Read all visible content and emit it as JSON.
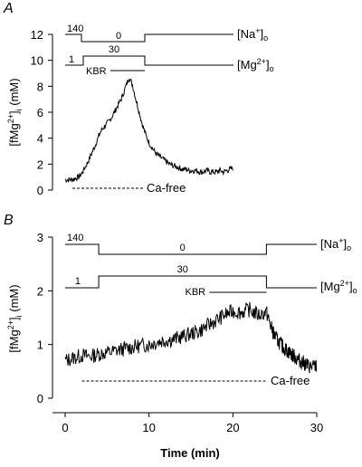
{
  "chart_data": [
    {
      "panel": "A",
      "type": "line",
      "ylabel": "[fMg2+]i (mM)",
      "ylim": [
        0,
        12
      ],
      "yticks": [
        0,
        2,
        4,
        6,
        8,
        10,
        12
      ],
      "ytick_labels": [
        "0",
        "2",
        "4",
        "6",
        "8",
        "10",
        "12"
      ],
      "xlim": [
        0,
        30
      ],
      "series": [
        {
          "x": [
            0,
            0.5,
            1,
            1.5,
            2,
            2.5,
            3,
            3.5,
            4,
            4.5,
            5,
            5.5,
            6,
            6.5,
            7,
            7.5,
            8,
            8.5,
            9,
            9.5,
            10,
            10.5,
            11,
            11.5,
            12,
            12.5,
            13,
            13.5,
            14,
            14.5,
            15,
            15.5,
            16,
            16.5,
            17,
            17.5,
            18,
            18.5,
            19,
            19.5,
            20,
            20.5,
            21,
            21.5,
            22,
            22.5,
            23,
            23.5,
            24,
            24.5,
            25
          ],
          "y": [
            0.8,
            0.8,
            0.8,
            0.9,
            1.0,
            1.3,
            1.8,
            2.3,
            2.9,
            3.5,
            4.2,
            4.7,
            5.0,
            5.3,
            5.7,
            6.2,
            6.7,
            7.2,
            8.0,
            8.7,
            8.1,
            7.0,
            6.0,
            5.0,
            4.2,
            3.6,
            3.2,
            2.8,
            2.6,
            2.4,
            2.2,
            2.0,
            1.9,
            1.8,
            1.7,
            1.6,
            1.6,
            1.5,
            1.5,
            1.5,
            1.4,
            1.4,
            1.5,
            1.4,
            1.4,
            1.4,
            1.5,
            1.4,
            1.5,
            1.6,
            1.7
          ]
        }
      ],
      "annotations": {
        "na_label": "[Na+]o",
        "na_high": "140",
        "na_low": "0",
        "mg_label": "[Mg2+]o",
        "mg_low": "1",
        "mg_high": "30",
        "kbr": "KBR",
        "cafree": "Ca-free"
      }
    },
    {
      "panel": "B",
      "type": "line",
      "ylabel": "[fMg2+]i (mM)",
      "xlabel": "Time (min)",
      "ylim": [
        0,
        3
      ],
      "yticks": [
        0,
        1,
        2,
        3
      ],
      "ytick_labels": [
        "0",
        "1",
        "2",
        "3"
      ],
      "xlim": [
        0,
        30
      ],
      "xticks": [
        0,
        10,
        20,
        30
      ],
      "xtick_labels": [
        "0",
        "10",
        "20",
        "30"
      ],
      "series": [
        {
          "x": [
            0,
            1,
            2,
            3,
            4,
            5,
            6,
            7,
            8,
            9,
            10,
            11,
            12,
            13,
            14,
            15,
            16,
            17,
            18,
            19,
            20,
            21,
            22,
            23,
            24,
            24.5,
            25,
            25.5,
            26,
            26.5,
            27,
            27.5,
            28,
            28.5,
            29,
            29.5,
            30
          ],
          "y": [
            0.7,
            0.75,
            0.8,
            0.78,
            0.82,
            0.85,
            0.88,
            0.92,
            0.95,
            0.98,
            1.0,
            1.05,
            1.08,
            1.1,
            1.15,
            1.2,
            1.25,
            1.35,
            1.45,
            1.55,
            1.62,
            1.6,
            1.65,
            1.55,
            1.6,
            1.35,
            1.15,
            1.05,
            0.95,
            0.88,
            0.82,
            0.75,
            0.7,
            0.65,
            0.6,
            0.58,
            0.6
          ]
        }
      ],
      "annotations": {
        "na_label": "[Na+]o",
        "na_high": "140",
        "na_low": "0",
        "mg_label": "[Mg2+]o",
        "mg_low": "1",
        "mg_high": "30",
        "kbr": "KBR",
        "cafree": "Ca-free"
      }
    }
  ]
}
